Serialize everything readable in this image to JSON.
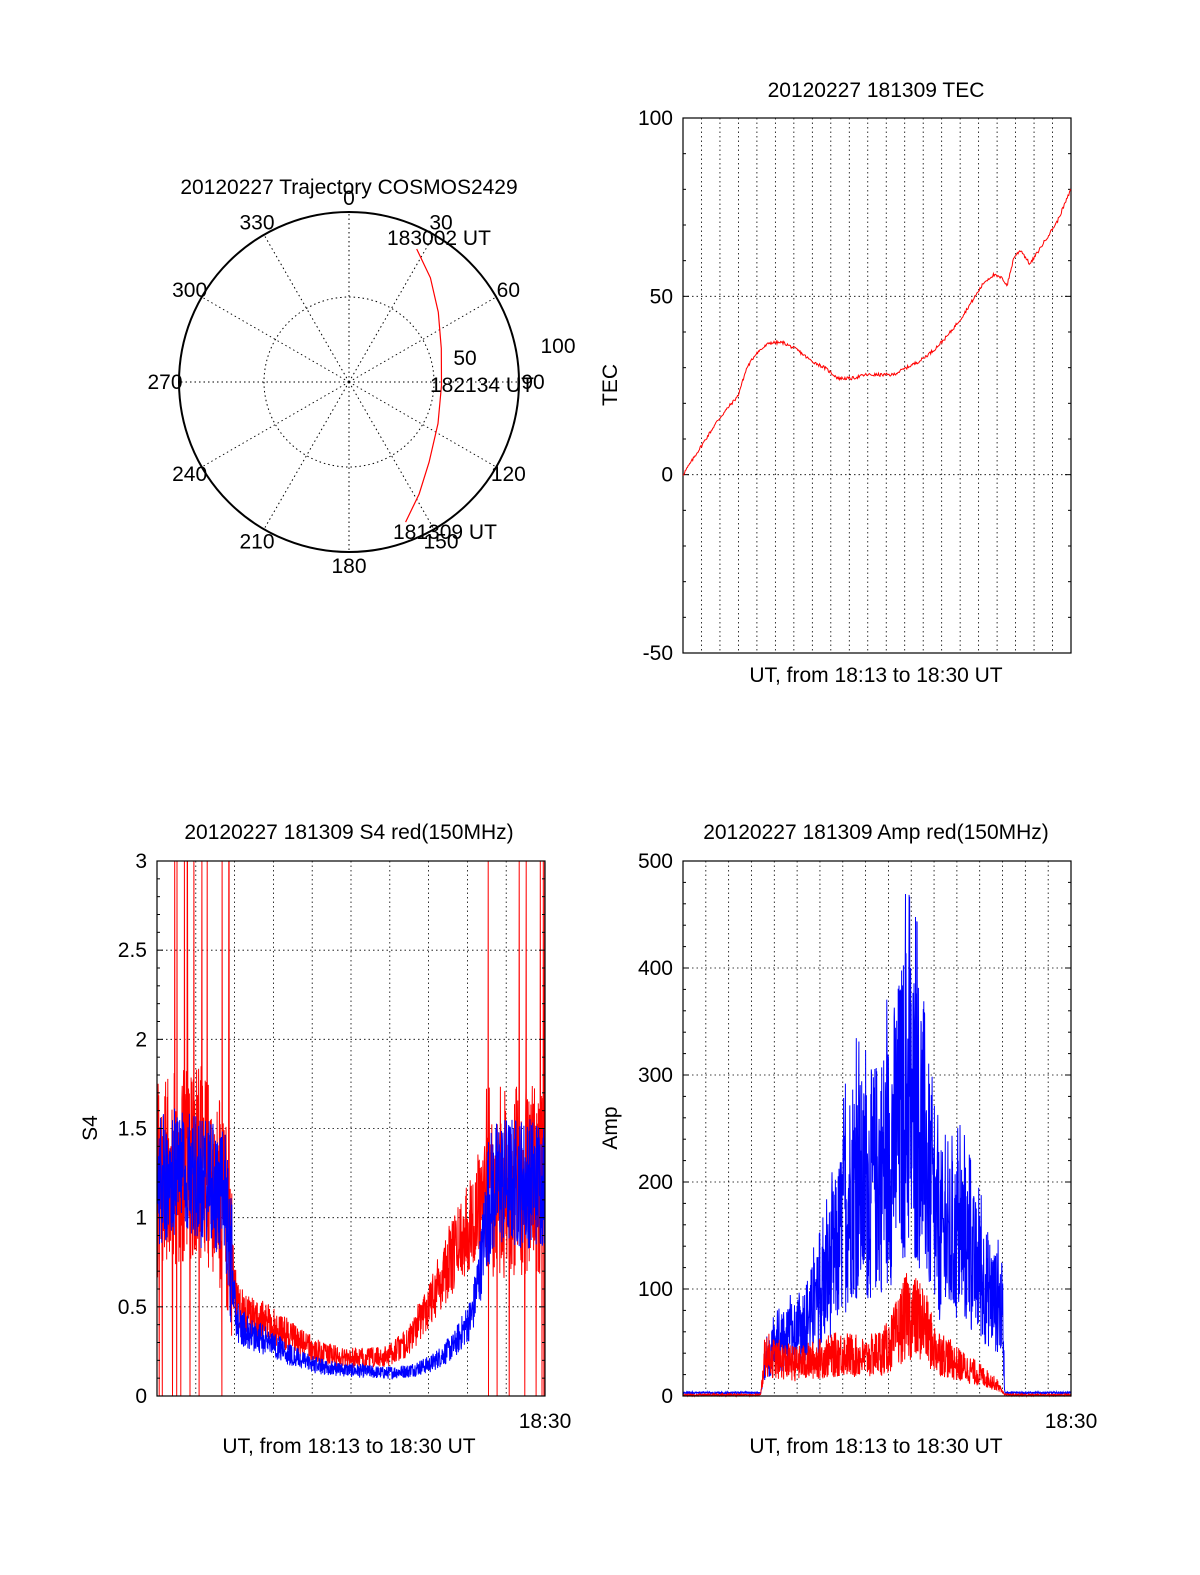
{
  "chart_data": [
    {
      "type": "polar",
      "title": "20120227 Trajectory COSMOS2429",
      "angle_labels": [
        "0",
        "30",
        "60",
        "90",
        "120",
        "150",
        "180",
        "210",
        "240",
        "270",
        "300",
        "330"
      ],
      "radius_labels": [
        "50",
        "100"
      ],
      "start_label": "181309 UT",
      "mid_label": "182134 UT",
      "end_label": "183002 UT",
      "trajectory": {
        "color": "#ff0000",
        "points": [
          {
            "az": 158,
            "el": 10
          },
          {
            "az": 148,
            "el": 20
          },
          {
            "az": 135,
            "el": 30
          },
          {
            "az": 115,
            "el": 38
          },
          {
            "az": 92,
            "el": 41
          },
          {
            "az": 70,
            "el": 38
          },
          {
            "az": 52,
            "el": 30
          },
          {
            "az": 38,
            "el": 20
          },
          {
            "az": 27,
            "el": 11
          }
        ]
      }
    },
    {
      "type": "line",
      "title": "20120227 181309 TEC",
      "ylabel": "TEC",
      "xlabel": "UT, from 18:13 to 18:30 UT",
      "ylim": [
        -50,
        100
      ],
      "yticks": [
        "-50",
        "0",
        "50",
        "100"
      ],
      "xlim": [
        0,
        17
      ],
      "grid": true,
      "series": [
        {
          "color": "#ff0000",
          "x": [
            0,
            0.2,
            0.5,
            1.0,
            1.5,
            2.0,
            2.4,
            2.8,
            3.2,
            3.8,
            4.4,
            5.0,
            5.6,
            6.2,
            6.8,
            7.4,
            8.0,
            8.6,
            9.2,
            9.8,
            10.4,
            11.0,
            11.6,
            12.2,
            12.8,
            13.2,
            13.6,
            14.0,
            14.2,
            14.5,
            14.8,
            15.2,
            15.6,
            16.0,
            16.4,
            16.8,
            17.0
          ],
          "values": [
            0,
            2,
            5,
            10,
            15,
            19,
            22,
            30,
            34,
            37,
            37,
            35,
            32,
            30,
            27,
            27,
            28,
            28,
            28,
            30,
            32,
            35,
            39,
            44,
            50,
            54,
            56,
            55,
            53,
            61,
            63,
            59,
            63,
            67,
            71,
            77,
            80
          ]
        }
      ]
    },
    {
      "type": "line",
      "title": "20120227 181309 S4 red(150MHz)",
      "ylabel": "S4",
      "xlabel": "UT, from 18:13 to 18:30 UT",
      "xtick_end": "18:30",
      "ylim": [
        0,
        3
      ],
      "yticks": [
        "0",
        "0.5",
        "1",
        "1.5",
        "2",
        "2.5",
        "3"
      ],
      "xlim": [
        0,
        17
      ],
      "grid": true,
      "series": [
        {
          "color": "#ff0000",
          "x": [
            0,
            1,
            2,
            3,
            3.5,
            4,
            5,
            6,
            7,
            8,
            9,
            10,
            11,
            11.5,
            12,
            13,
            14,
            14.5,
            15,
            16,
            17
          ],
          "values": [
            1.2,
            1.3,
            1.3,
            1.1,
            0.5,
            0.45,
            0.4,
            0.32,
            0.25,
            0.22,
            0.21,
            0.22,
            0.3,
            0.42,
            0.55,
            0.8,
            1.05,
            1.2,
            1.2,
            1.2,
            1.2
          ]
        },
        {
          "color": "#0000ff",
          "x": [
            0,
            1,
            2,
            3,
            3.5,
            4,
            5,
            6,
            7,
            8,
            9,
            10,
            11,
            12,
            13,
            13.8,
            14.2,
            14.5,
            15,
            16,
            17
          ],
          "values": [
            1.2,
            1.25,
            1.2,
            1.1,
            0.42,
            0.35,
            0.3,
            0.22,
            0.17,
            0.15,
            0.14,
            0.13,
            0.14,
            0.18,
            0.28,
            0.45,
            0.75,
            1.1,
            1.2,
            1.2,
            1.2
          ]
        }
      ]
    },
    {
      "type": "line",
      "title": "20120227 181309 Amp red(150MHz)",
      "ylabel": "Amp",
      "xlabel": "UT, from 18:13 to 18:30 UT",
      "xtick_end": "18:30",
      "ylim": [
        0,
        500
      ],
      "yticks": [
        "0",
        "100",
        "200",
        "300",
        "400",
        "500"
      ],
      "xlim": [
        0,
        17
      ],
      "grid": true,
      "series": [
        {
          "color": "#0000ff",
          "x": [
            0,
            2,
            3.4,
            3.6,
            4,
            5,
            6,
            6.8,
            7.4,
            8,
            9,
            9.8,
            10.5,
            11,
            11.6,
            12.2,
            12.8,
            13.5,
            14,
            14.1,
            15,
            17
          ],
          "values": [
            2,
            2,
            2,
            30,
            45,
            60,
            90,
            140,
            200,
            190,
            220,
            280,
            250,
            160,
            140,
            150,
            120,
            95,
            80,
            2,
            2,
            2
          ]
        },
        {
          "color": "#ff0000",
          "x": [
            0,
            3.4,
            3.6,
            4,
            5,
            6,
            7,
            8,
            9,
            9.8,
            10.5,
            11,
            12,
            13,
            13.8,
            14.1,
            17
          ],
          "values": [
            0,
            0,
            40,
            35,
            30,
            35,
            40,
            35,
            45,
            75,
            70,
            45,
            30,
            20,
            10,
            0,
            0
          ]
        }
      ]
    }
  ]
}
